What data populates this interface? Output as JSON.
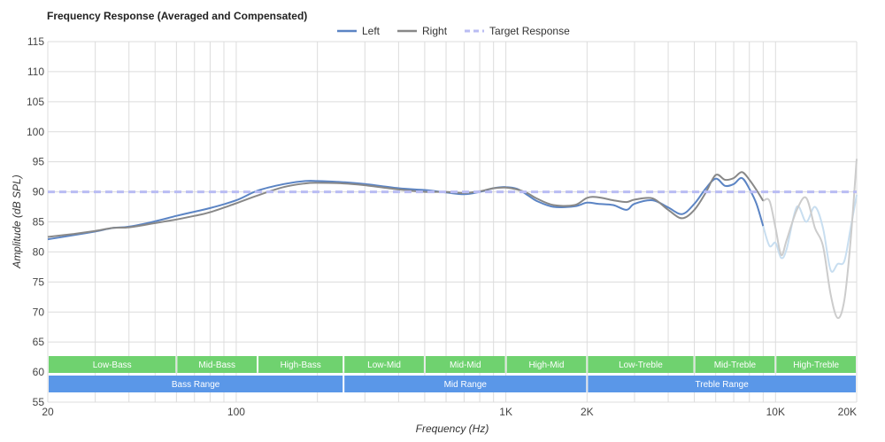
{
  "chart_data": {
    "type": "line",
    "title": "Frequency Response (Averaged and Compensated)",
    "xlabel": "Frequency (Hz)",
    "ylabel": "Amplitude (dB SPL)",
    "x_scale": "log",
    "xlim": [
      20,
      20000
    ],
    "ylim": [
      55,
      115
    ],
    "grid": true,
    "legend_position": "top-center",
    "y_ticks": [
      55,
      60,
      65,
      70,
      75,
      80,
      85,
      90,
      95,
      100,
      105,
      110,
      115
    ],
    "x_tick_labels": [
      {
        "value": 20,
        "label": "20"
      },
      {
        "value": 100,
        "label": "100"
      },
      {
        "value": 1000,
        "label": "1K"
      },
      {
        "value": 2000,
        "label": "2K"
      },
      {
        "value": 10000,
        "label": "10K"
      },
      {
        "value": 20000,
        "label": "20K"
      }
    ],
    "x_gridlines": [
      20,
      30,
      40,
      50,
      60,
      70,
      80,
      90,
      100,
      200,
      300,
      400,
      500,
      600,
      700,
      800,
      900,
      1000,
      2000,
      3000,
      4000,
      5000,
      6000,
      7000,
      8000,
      9000,
      10000,
      20000
    ],
    "series": [
      {
        "name": "Left",
        "color": "#5b84c4",
        "style": "solid",
        "x": [
          20,
          25,
          30,
          35,
          40,
          50,
          60,
          70,
          80,
          100,
          120,
          150,
          180,
          200,
          250,
          300,
          400,
          500,
          600,
          700,
          800,
          900,
          1000,
          1100,
          1200,
          1300,
          1500,
          1800,
          2000,
          2200,
          2500,
          2800,
          3000,
          3500,
          4000,
          4500,
          5000,
          5500,
          6000,
          6500,
          7000,
          7500,
          8000,
          8500,
          9000
        ],
        "y": [
          82.1,
          82.8,
          83.4,
          84.0,
          84.2,
          85.1,
          86.0,
          86.7,
          87.3,
          88.6,
          90.2,
          91.3,
          91.8,
          91.8,
          91.6,
          91.3,
          90.6,
          90.3,
          89.9,
          89.6,
          90.0,
          90.6,
          90.8,
          90.5,
          89.5,
          88.5,
          87.5,
          87.6,
          88.2,
          88.0,
          87.8,
          87.0,
          88.0,
          88.6,
          87.4,
          86.3,
          88.0,
          90.5,
          92.2,
          91.0,
          91.3,
          92.3,
          90.5,
          88.0,
          84.3
        ]
      },
      {
        "name": "Right",
        "color": "#888888",
        "style": "solid",
        "x": [
          20,
          25,
          30,
          35,
          40,
          50,
          60,
          70,
          80,
          100,
          120,
          150,
          180,
          200,
          250,
          300,
          400,
          500,
          600,
          700,
          800,
          900,
          1000,
          1100,
          1200,
          1300,
          1500,
          1800,
          2000,
          2200,
          2500,
          2800,
          3000,
          3500,
          4000,
          4500,
          5000,
          5500,
          6000,
          6500,
          7000,
          7500,
          8000,
          8500,
          9000
        ],
        "y": [
          82.5,
          83.0,
          83.5,
          84.0,
          84.1,
          84.8,
          85.4,
          86.0,
          86.6,
          88.1,
          89.4,
          90.8,
          91.4,
          91.5,
          91.4,
          91.1,
          90.4,
          90.0,
          90.0,
          89.8,
          90.1,
          90.6,
          90.7,
          90.4,
          89.8,
          88.9,
          87.8,
          87.8,
          89.0,
          89.1,
          88.6,
          88.3,
          88.7,
          88.9,
          87.0,
          85.6,
          87.0,
          89.8,
          92.8,
          92.0,
          92.3,
          93.3,
          92.0,
          90.3,
          88.5
        ]
      },
      {
        "name": "Target Response",
        "color": "#b9bcf3",
        "style": "dashed",
        "x": [
          20,
          20000
        ],
        "y": [
          90,
          90
        ]
      }
    ],
    "faded_series": [
      {
        "color": "#c8def0",
        "x": [
          9000,
          9500,
          10000,
          10500,
          11000,
          12000,
          13000,
          14000,
          15000,
          16000,
          17000,
          18000,
          19000,
          20000
        ],
        "y": [
          84.3,
          81.0,
          81.5,
          79.0,
          80.5,
          87.5,
          85.0,
          87.5,
          84.0,
          77.0,
          78.0,
          78.5,
          84.0,
          89.5
        ]
      },
      {
        "color": "#cccccc",
        "x": [
          9000,
          9500,
          10000,
          10500,
          11000,
          12000,
          13000,
          14000,
          15000,
          16000,
          17000,
          18000,
          19000,
          20000
        ],
        "y": [
          88.5,
          88.5,
          84.0,
          79.5,
          82.0,
          87.0,
          89.0,
          84.0,
          81.0,
          73.0,
          69.0,
          72.0,
          82.0,
          95.5
        ]
      }
    ],
    "range_bands": [
      {
        "row": 1,
        "color": "#6fd26f",
        "items": [
          {
            "label": "Low-Bass",
            "from": 20,
            "to": 60
          },
          {
            "label": "Mid-Bass",
            "from": 60,
            "to": 120
          },
          {
            "label": "High-Bass",
            "from": 120,
            "to": 250
          },
          {
            "label": "Low-Mid",
            "from": 250,
            "to": 500
          },
          {
            "label": "Mid-Mid",
            "from": 500,
            "to": 1000
          },
          {
            "label": "High-Mid",
            "from": 1000,
            "to": 2000
          },
          {
            "label": "Low-Treble",
            "from": 2000,
            "to": 5000
          },
          {
            "label": "Mid-Treble",
            "from": 5000,
            "to": 10000
          },
          {
            "label": "High-Treble",
            "from": 10000,
            "to": 20000
          }
        ]
      },
      {
        "row": 2,
        "color": "#5a97e8",
        "items": [
          {
            "label": "Bass Range",
            "from": 20,
            "to": 250
          },
          {
            "label": "Mid Range",
            "from": 250,
            "to": 2000
          },
          {
            "label": "Treble Range",
            "from": 2000,
            "to": 20000
          }
        ]
      }
    ]
  }
}
